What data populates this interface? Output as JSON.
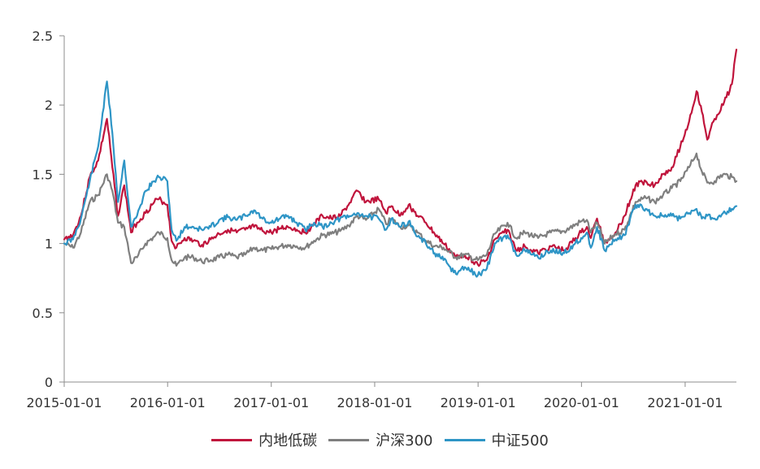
{
  "chart_data": {
    "type": "line",
    "title": "",
    "xlabel": "",
    "ylabel": "",
    "ylim": [
      0,
      2.5
    ],
    "yticks": [
      "0",
      "0.5",
      "1",
      "1.5",
      "2",
      "2.5"
    ],
    "xlim": [
      "2015-01-01",
      "2021-07-01"
    ],
    "xticks": [
      "2015-01-01",
      "2016-01-01",
      "2017-01-01",
      "2018-01-01",
      "2019-01-01",
      "2020-01-01",
      "2021-01-01"
    ],
    "grid": false,
    "legend": "bottom-center",
    "series": [
      {
        "name": "内地低碳",
        "color": "#c0143c",
        "points": [
          [
            "2015-01-01",
            1.03
          ],
          [
            "2015-02-01",
            1.06
          ],
          [
            "2015-03-01",
            1.2
          ],
          [
            "2015-04-01",
            1.48
          ],
          [
            "2015-05-01",
            1.6
          ],
          [
            "2015-06-01",
            1.9
          ],
          [
            "2015-06-20",
            1.55
          ],
          [
            "2015-07-10",
            1.2
          ],
          [
            "2015-08-01",
            1.42
          ],
          [
            "2015-08-25",
            1.08
          ],
          [
            "2015-09-15",
            1.15
          ],
          [
            "2015-10-15",
            1.22
          ],
          [
            "2015-11-15",
            1.3
          ],
          [
            "2015-12-01",
            1.32
          ],
          [
            "2015-12-31",
            1.28
          ],
          [
            "2016-01-15",
            1.02
          ],
          [
            "2016-02-01",
            0.97
          ],
          [
            "2016-03-01",
            1.04
          ],
          [
            "2016-04-01",
            1.02
          ],
          [
            "2016-05-01",
            0.99
          ],
          [
            "2016-06-01",
            1.03
          ],
          [
            "2016-07-01",
            1.07
          ],
          [
            "2016-08-01",
            1.1
          ],
          [
            "2016-09-01",
            1.08
          ],
          [
            "2016-10-01",
            1.1
          ],
          [
            "2016-11-01",
            1.12
          ],
          [
            "2016-12-01",
            1.09
          ],
          [
            "2017-01-01",
            1.08
          ],
          [
            "2017-02-01",
            1.11
          ],
          [
            "2017-03-01",
            1.12
          ],
          [
            "2017-04-01",
            1.1
          ],
          [
            "2017-05-01",
            1.08
          ],
          [
            "2017-06-01",
            1.14
          ],
          [
            "2017-07-01",
            1.2
          ],
          [
            "2017-08-01",
            1.18
          ],
          [
            "2017-09-01",
            1.2
          ],
          [
            "2017-10-01",
            1.28
          ],
          [
            "2017-11-01",
            1.38
          ],
          [
            "2017-12-01",
            1.3
          ],
          [
            "2018-01-15",
            1.32
          ],
          [
            "2018-02-10",
            1.22
          ],
          [
            "2018-03-01",
            1.27
          ],
          [
            "2018-04-01",
            1.2
          ],
          [
            "2018-05-01",
            1.28
          ],
          [
            "2018-06-01",
            1.2
          ],
          [
            "2018-07-01",
            1.15
          ],
          [
            "2018-08-01",
            1.07
          ],
          [
            "2018-09-01",
            1.0
          ],
          [
            "2018-10-15",
            0.9
          ],
          [
            "2018-11-15",
            0.92
          ],
          [
            "2018-12-31",
            0.85
          ],
          [
            "2019-02-01",
            0.88
          ],
          [
            "2019-03-01",
            1.03
          ],
          [
            "2019-04-15",
            1.1
          ],
          [
            "2019-05-15",
            0.95
          ],
          [
            "2019-06-15",
            0.98
          ],
          [
            "2019-08-01",
            0.93
          ],
          [
            "2019-09-15",
            0.98
          ],
          [
            "2019-11-01",
            0.95
          ],
          [
            "2019-12-31",
            1.08
          ],
          [
            "2020-01-20",
            1.12
          ],
          [
            "2020-02-03",
            1.04
          ],
          [
            "2020-02-25",
            1.18
          ],
          [
            "2020-03-23",
            1.0
          ],
          [
            "2020-04-30",
            1.08
          ],
          [
            "2020-06-01",
            1.2
          ],
          [
            "2020-07-10",
            1.42
          ],
          [
            "2020-08-15",
            1.45
          ],
          [
            "2020-09-15",
            1.42
          ],
          [
            "2020-10-15",
            1.5
          ],
          [
            "2020-11-15",
            1.55
          ],
          [
            "2020-12-15",
            1.7
          ],
          [
            "2021-01-15",
            1.88
          ],
          [
            "2021-02-10",
            2.1
          ],
          [
            "2021-03-01",
            1.95
          ],
          [
            "2021-03-20",
            1.75
          ],
          [
            "2021-04-15",
            1.9
          ],
          [
            "2021-05-15",
            2.0
          ],
          [
            "2021-06-15",
            2.15
          ],
          [
            "2021-07-01",
            2.4
          ]
        ]
      },
      {
        "name": "沪深300",
        "color": "#7f7f7f",
        "points": [
          [
            "2015-01-01",
            1.0
          ],
          [
            "2015-02-01",
            0.97
          ],
          [
            "2015-03-01",
            1.08
          ],
          [
            "2015-04-01",
            1.3
          ],
          [
            "2015-05-01",
            1.35
          ],
          [
            "2015-06-01",
            1.5
          ],
          [
            "2015-06-20",
            1.38
          ],
          [
            "2015-07-10",
            1.15
          ],
          [
            "2015-08-01",
            1.12
          ],
          [
            "2015-08-25",
            0.86
          ],
          [
            "2015-09-15",
            0.9
          ],
          [
            "2015-10-15",
            1.0
          ],
          [
            "2015-11-15",
            1.05
          ],
          [
            "2015-12-01",
            1.08
          ],
          [
            "2015-12-31",
            1.04
          ],
          [
            "2016-01-15",
            0.88
          ],
          [
            "2016-02-01",
            0.84
          ],
          [
            "2016-03-01",
            0.9
          ],
          [
            "2016-04-01",
            0.9
          ],
          [
            "2016-05-01",
            0.87
          ],
          [
            "2016-06-01",
            0.88
          ],
          [
            "2016-07-01",
            0.9
          ],
          [
            "2016-08-01",
            0.92
          ],
          [
            "2016-09-01",
            0.9
          ],
          [
            "2016-10-01",
            0.92
          ],
          [
            "2016-11-01",
            0.97
          ],
          [
            "2016-12-01",
            0.95
          ],
          [
            "2017-01-01",
            0.96
          ],
          [
            "2017-02-01",
            0.98
          ],
          [
            "2017-03-01",
            0.99
          ],
          [
            "2017-04-01",
            0.98
          ],
          [
            "2017-05-01",
            0.97
          ],
          [
            "2017-06-01",
            1.02
          ],
          [
            "2017-07-01",
            1.06
          ],
          [
            "2017-08-01",
            1.07
          ],
          [
            "2017-09-01",
            1.09
          ],
          [
            "2017-10-01",
            1.13
          ],
          [
            "2017-11-01",
            1.2
          ],
          [
            "2017-12-01",
            1.17
          ],
          [
            "2018-01-15",
            1.25
          ],
          [
            "2018-02-10",
            1.14
          ],
          [
            "2018-03-01",
            1.18
          ],
          [
            "2018-04-01",
            1.12
          ],
          [
            "2018-05-01",
            1.13
          ],
          [
            "2018-06-01",
            1.08
          ],
          [
            "2018-07-01",
            1.02
          ],
          [
            "2018-08-01",
            0.98
          ],
          [
            "2018-09-01",
            0.97
          ],
          [
            "2018-10-15",
            0.9
          ],
          [
            "2018-11-15",
            0.92
          ],
          [
            "2018-12-31",
            0.88
          ],
          [
            "2019-02-01",
            0.92
          ],
          [
            "2019-03-01",
            1.07
          ],
          [
            "2019-04-15",
            1.15
          ],
          [
            "2019-05-15",
            1.04
          ],
          [
            "2019-06-15",
            1.08
          ],
          [
            "2019-08-01",
            1.04
          ],
          [
            "2019-09-15",
            1.08
          ],
          [
            "2019-11-01",
            1.09
          ],
          [
            "2019-12-31",
            1.16
          ],
          [
            "2020-01-20",
            1.17
          ],
          [
            "2020-02-03",
            1.08
          ],
          [
            "2020-02-25",
            1.15
          ],
          [
            "2020-03-23",
            1.0
          ],
          [
            "2020-04-30",
            1.07
          ],
          [
            "2020-06-01",
            1.1
          ],
          [
            "2020-07-10",
            1.3
          ],
          [
            "2020-08-15",
            1.33
          ],
          [
            "2020-09-15",
            1.3
          ],
          [
            "2020-10-15",
            1.35
          ],
          [
            "2020-11-15",
            1.4
          ],
          [
            "2020-12-15",
            1.45
          ],
          [
            "2021-01-15",
            1.55
          ],
          [
            "2021-02-10",
            1.65
          ],
          [
            "2021-03-01",
            1.52
          ],
          [
            "2021-03-20",
            1.44
          ],
          [
            "2021-04-15",
            1.45
          ],
          [
            "2021-05-15",
            1.5
          ],
          [
            "2021-06-15",
            1.48
          ],
          [
            "2021-07-01",
            1.45
          ]
        ]
      },
      {
        "name": "中证500",
        "color": "#2e95c6",
        "points": [
          [
            "2015-01-01",
            1.0
          ],
          [
            "2015-02-01",
            1.03
          ],
          [
            "2015-03-01",
            1.18
          ],
          [
            "2015-04-01",
            1.45
          ],
          [
            "2015-05-01",
            1.7
          ],
          [
            "2015-06-01",
            2.17
          ],
          [
            "2015-06-20",
            1.8
          ],
          [
            "2015-07-10",
            1.3
          ],
          [
            "2015-08-01",
            1.6
          ],
          [
            "2015-08-25",
            1.12
          ],
          [
            "2015-09-15",
            1.2
          ],
          [
            "2015-10-15",
            1.38
          ],
          [
            "2015-11-15",
            1.45
          ],
          [
            "2015-12-01",
            1.48
          ],
          [
            "2015-12-31",
            1.45
          ],
          [
            "2016-01-15",
            1.1
          ],
          [
            "2016-02-01",
            1.02
          ],
          [
            "2016-03-01",
            1.12
          ],
          [
            "2016-04-01",
            1.12
          ],
          [
            "2016-05-01",
            1.1
          ],
          [
            "2016-06-01",
            1.12
          ],
          [
            "2016-07-01",
            1.17
          ],
          [
            "2016-08-01",
            1.19
          ],
          [
            "2016-09-01",
            1.17
          ],
          [
            "2016-10-01",
            1.2
          ],
          [
            "2016-11-01",
            1.24
          ],
          [
            "2016-12-01",
            1.18
          ],
          [
            "2017-01-01",
            1.15
          ],
          [
            "2017-02-01",
            1.18
          ],
          [
            "2017-03-01",
            1.2
          ],
          [
            "2017-04-01",
            1.15
          ],
          [
            "2017-05-01",
            1.1
          ],
          [
            "2017-06-01",
            1.15
          ],
          [
            "2017-07-01",
            1.12
          ],
          [
            "2017-08-01",
            1.15
          ],
          [
            "2017-09-01",
            1.18
          ],
          [
            "2017-10-01",
            1.19
          ],
          [
            "2017-11-01",
            1.22
          ],
          [
            "2017-12-01",
            1.2
          ],
          [
            "2018-01-15",
            1.18
          ],
          [
            "2018-02-10",
            1.1
          ],
          [
            "2018-03-01",
            1.18
          ],
          [
            "2018-04-01",
            1.12
          ],
          [
            "2018-05-01",
            1.16
          ],
          [
            "2018-06-01",
            1.05
          ],
          [
            "2018-07-01",
            1.0
          ],
          [
            "2018-08-01",
            0.93
          ],
          [
            "2018-09-01",
            0.88
          ],
          [
            "2018-10-15",
            0.78
          ],
          [
            "2018-11-15",
            0.83
          ],
          [
            "2018-12-31",
            0.77
          ],
          [
            "2019-02-01",
            0.82
          ],
          [
            "2019-03-01",
            1.0
          ],
          [
            "2019-04-15",
            1.06
          ],
          [
            "2019-05-15",
            0.92
          ],
          [
            "2019-06-15",
            0.95
          ],
          [
            "2019-08-01",
            0.9
          ],
          [
            "2019-09-15",
            0.95
          ],
          [
            "2019-11-01",
            0.93
          ],
          [
            "2019-12-31",
            1.04
          ],
          [
            "2020-01-20",
            1.08
          ],
          [
            "2020-02-03",
            0.97
          ],
          [
            "2020-02-25",
            1.12
          ],
          [
            "2020-03-23",
            0.95
          ],
          [
            "2020-04-30",
            1.03
          ],
          [
            "2020-06-01",
            1.06
          ],
          [
            "2020-07-10",
            1.28
          ],
          [
            "2020-08-15",
            1.25
          ],
          [
            "2020-09-15",
            1.2
          ],
          [
            "2020-10-15",
            1.2
          ],
          [
            "2020-11-15",
            1.2
          ],
          [
            "2020-12-15",
            1.18
          ],
          [
            "2021-01-15",
            1.22
          ],
          [
            "2021-02-10",
            1.25
          ],
          [
            "2021-03-01",
            1.18
          ],
          [
            "2021-03-20",
            1.2
          ],
          [
            "2021-04-15",
            1.18
          ],
          [
            "2021-05-15",
            1.22
          ],
          [
            "2021-06-15",
            1.25
          ],
          [
            "2021-07-01",
            1.27
          ]
        ]
      }
    ]
  }
}
